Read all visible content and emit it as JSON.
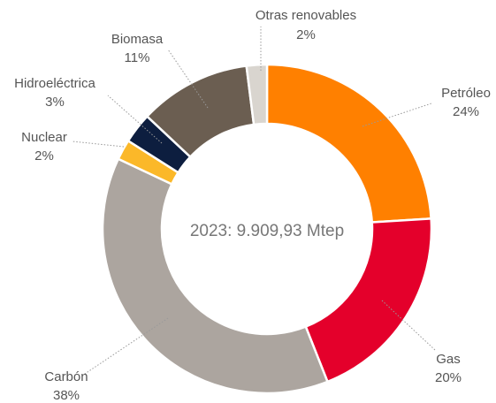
{
  "chart_data": {
    "type": "donut",
    "center_label": "2023: 9.909,93 Mtep",
    "categories": [
      "Petróleo",
      "Gas",
      "Carbón",
      "Nuclear",
      "Hidroeléctrica",
      "Biomasa",
      "Otras renovables"
    ],
    "values": [
      24,
      20,
      38,
      2,
      3,
      11,
      2
    ],
    "value_labels": [
      "24%",
      "20%",
      "38%",
      "2%",
      "3%",
      "11%",
      "2%"
    ],
    "colors": [
      "#ff8000",
      "#e4002b",
      "#aca59f",
      "#fbb829",
      "#0d1e3f",
      "#6b5e51",
      "#d9d5cf"
    ]
  }
}
